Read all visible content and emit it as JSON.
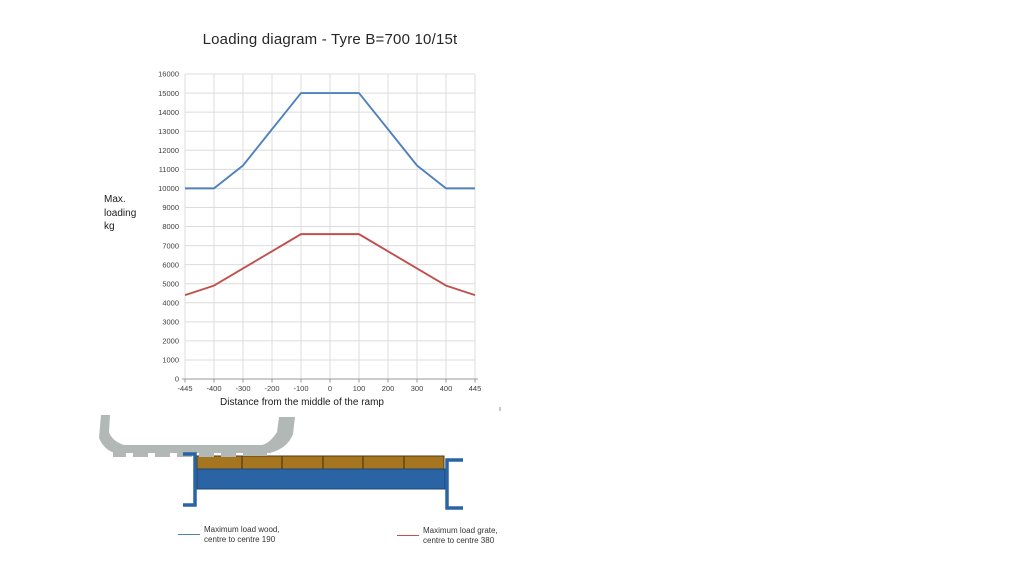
{
  "chart_data": {
    "type": "line",
    "title": "Loading diagram - Tyre B=700 10/15t",
    "xlabel": "Distance from the middle of the ramp",
    "ylabel": "Max.\nloading\nkg",
    "x_categories": [
      "-445",
      "-400",
      "-300",
      "-200",
      "-100",
      "0",
      "100",
      "200",
      "300",
      "400",
      "445"
    ],
    "y_ticks": [
      0,
      1000,
      2000,
      3000,
      4000,
      5000,
      6000,
      7000,
      8000,
      9000,
      10000,
      11000,
      12000,
      13000,
      14000,
      15000,
      16000
    ],
    "ylim": [
      0,
      16000
    ],
    "grid": true,
    "legend_position": "bottom",
    "series": [
      {
        "name": "Maximum load wood, centre to centre 190",
        "color": "#4F81BD",
        "values": [
          10000,
          10000,
          11200,
          13100,
          15000,
          15000,
          15000,
          13100,
          11200,
          10000,
          10000
        ]
      },
      {
        "name": "Maximum load grate, centre to centre 380",
        "color": "#C0504D",
        "values": [
          4400,
          4900,
          5800,
          6700,
          7600,
          7600,
          7600,
          6700,
          5800,
          4900,
          4400
        ]
      }
    ],
    "style": {
      "gridline_color": "#dcdcdc",
      "axis_color": "#9a9a9a",
      "tick_label_color": "#3f3f3f"
    }
  },
  "legend": {
    "items": [
      {
        "line1": "Maximum load wood,",
        "line2": "centre to centre 190",
        "color": "#4F81BD"
      },
      {
        "line1": "Maximum load grate,",
        "line2": "centre to centre 380",
        "color": "#C0504D"
      }
    ]
  },
  "diagram": {
    "description": "Ramp cross-section: tyre resting on wooden planks over steel deck with end channels",
    "colors": {
      "tyre": "#b2b8b6",
      "deck_blue": "#2a64a5",
      "plank": "#a5761f",
      "plank_border": "#4f3b10",
      "deck_border": "#1d4473"
    }
  }
}
